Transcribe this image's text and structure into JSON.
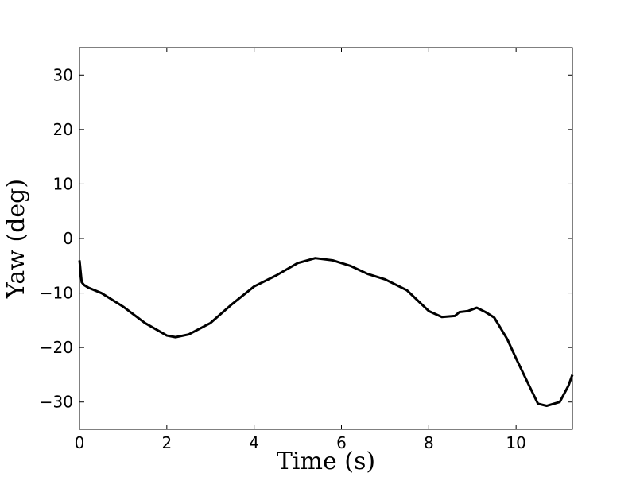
{
  "chart_data": {
    "type": "line",
    "x_label": "Time (s)",
    "y_label": "Yaw (deg)",
    "x": [
      0,
      0.05,
      0.1,
      0.2,
      0.5,
      1.0,
      1.5,
      2.0,
      2.2,
      2.5,
      3.0,
      3.5,
      4.0,
      4.5,
      5.0,
      5.4,
      5.8,
      6.2,
      6.6,
      7.0,
      7.5,
      8.0,
      8.3,
      8.6,
      8.7,
      8.9,
      9.1,
      9.3,
      9.5,
      9.8,
      10.0,
      10.3,
      10.5,
      10.7,
      11.0,
      11.2,
      11.29
    ],
    "series": [
      {
        "color": "#000000",
        "values": [
          -4,
          -8,
          -8.5,
          -9,
          -10,
          -12.5,
          -15.5,
          -17.8,
          -18.1,
          -17.6,
          -15.5,
          -12,
          -8.8,
          -6.8,
          -4.5,
          -3.6,
          -4.0,
          -5.0,
          -6.5,
          -7.5,
          -9.5,
          -13.3,
          -14.4,
          -14.2,
          -13.5,
          -13.3,
          -12.7,
          -13.5,
          -14.5,
          -18.5,
          -22,
          -27,
          -30.3,
          -30.7,
          -30.0,
          -27,
          -25
        ]
      }
    ],
    "xlim": [
      0,
      11.29
    ],
    "ylim": [
      -35,
      35
    ],
    "xticks": [
      0,
      2,
      4,
      6,
      8,
      10
    ],
    "yticks": [
      {
        "value": -30,
        "label": "−30"
      },
      {
        "value": -20,
        "label": "−20"
      },
      {
        "value": -10,
        "label": "−10"
      },
      0,
      10,
      20,
      30
    ]
  }
}
